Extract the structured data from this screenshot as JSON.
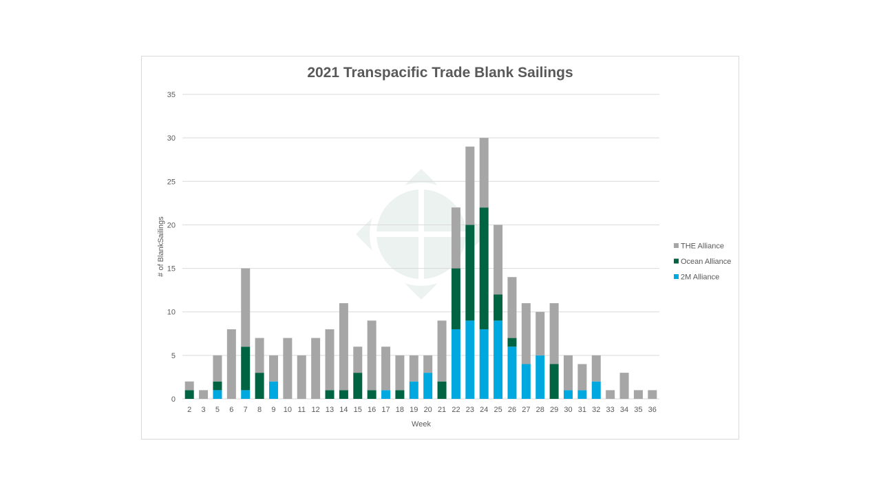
{
  "chart_data": {
    "type": "bar",
    "stacked": true,
    "title": "2021 Transpacific Trade Blank Sailings",
    "xlabel": "Week",
    "ylabel": "# of BlankSailings",
    "ylim": [
      0,
      35
    ],
    "yticks": [
      0,
      5,
      10,
      15,
      20,
      25,
      30,
      35
    ],
    "grid": true,
    "legend_position": "right",
    "categories": [
      "2",
      "3",
      "5",
      "6",
      "7",
      "8",
      "9",
      "10",
      "11",
      "12",
      "13",
      "14",
      "15",
      "16",
      "17",
      "18",
      "19",
      "20",
      "21",
      "22",
      "23",
      "24",
      "25",
      "26",
      "27",
      "28",
      "29",
      "30",
      "31",
      "32",
      "33",
      "34",
      "35",
      "36"
    ],
    "series": [
      {
        "name": "2M Alliance",
        "color": "#00a8e0",
        "values": [
          0,
          0,
          1,
          0,
          1,
          0,
          2,
          0,
          0,
          0,
          0,
          0,
          0,
          0,
          1,
          0,
          2,
          3,
          0,
          8,
          9,
          8,
          9,
          6,
          4,
          5,
          0,
          1,
          1,
          2,
          0,
          0,
          0,
          0
        ]
      },
      {
        "name": "Ocean Alliance",
        "color": "#006341",
        "values": [
          1,
          0,
          1,
          0,
          5,
          3,
          0,
          0,
          0,
          0,
          1,
          1,
          3,
          1,
          0,
          1,
          0,
          0,
          2,
          7,
          11,
          14,
          3,
          1,
          0,
          0,
          4,
          0,
          0,
          0,
          0,
          0,
          0,
          0
        ]
      },
      {
        "name": "THE Alliance",
        "color": "#a6a6a6",
        "values": [
          1,
          1,
          3,
          8,
          9,
          4,
          3,
          7,
          5,
          7,
          7,
          10,
          3,
          8,
          5,
          4,
          3,
          2,
          7,
          7,
          9,
          8,
          8,
          7,
          7,
          5,
          7,
          4,
          3,
          3,
          1,
          3,
          1,
          1
        ]
      }
    ]
  }
}
